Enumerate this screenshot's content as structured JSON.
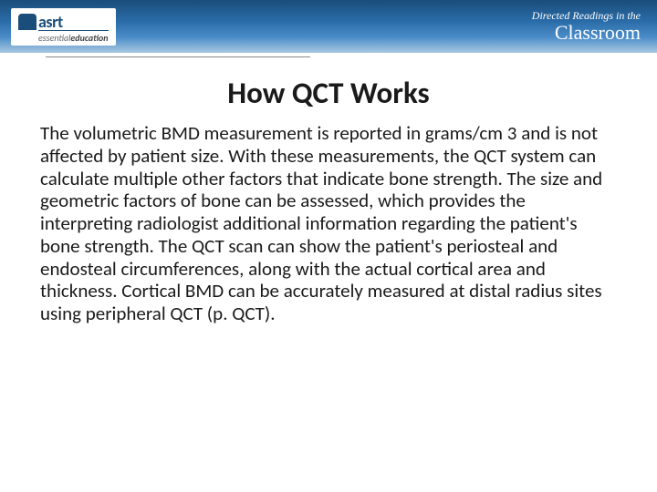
{
  "header": {
    "logo_main": "asrt",
    "logo_sub_italic": "essential",
    "logo_sub_bold": "education",
    "right_line1": "Directed Readings in the",
    "right_line2": "Classroom"
  },
  "title": "How QCT Works",
  "body": "The volumetric BMD measurement is reported in grams/cm 3 and is not affected by patient size. With these measurements, the QCT system can calculate multiple other factors that indicate bone strength. The size and geometric factors of bone can be assessed, which provides the interpreting radiologist additional information regarding the patient's bone strength. The QCT scan can show the patient's periosteal and endosteal circumferences, along with the actual cortical area and thickness. Cortical BMD can be accurately measured at distal radius sites using peripheral QCT (p. QCT).",
  "colors": {
    "header_gradient_start": "#1a4d7a",
    "header_gradient_end": "#a8c8e0",
    "text": "#1a1a1a",
    "background": "#ffffff"
  }
}
